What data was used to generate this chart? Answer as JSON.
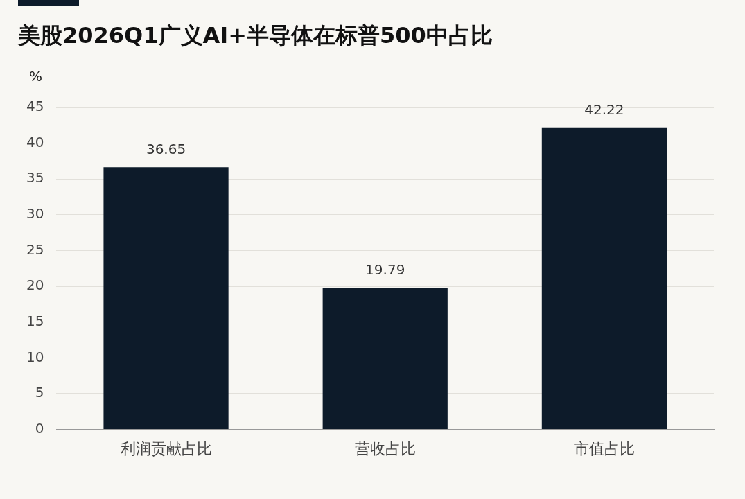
{
  "chart_data": {
    "type": "bar",
    "title": "美股2026Q1广义AI+半导体在标普500中占比",
    "ylabel": "%",
    "categories": [
      "利润贡献占比",
      "营收占比",
      "市值占比"
    ],
    "values": [
      36.65,
      19.79,
      42.22
    ],
    "color": "#0d1b2a",
    "ylim": [
      0,
      45
    ],
    "yticks": [
      0,
      5,
      10,
      15,
      20,
      25,
      30,
      35,
      40,
      45
    ],
    "grid": "y",
    "data_labels": true,
    "legend": false
  }
}
